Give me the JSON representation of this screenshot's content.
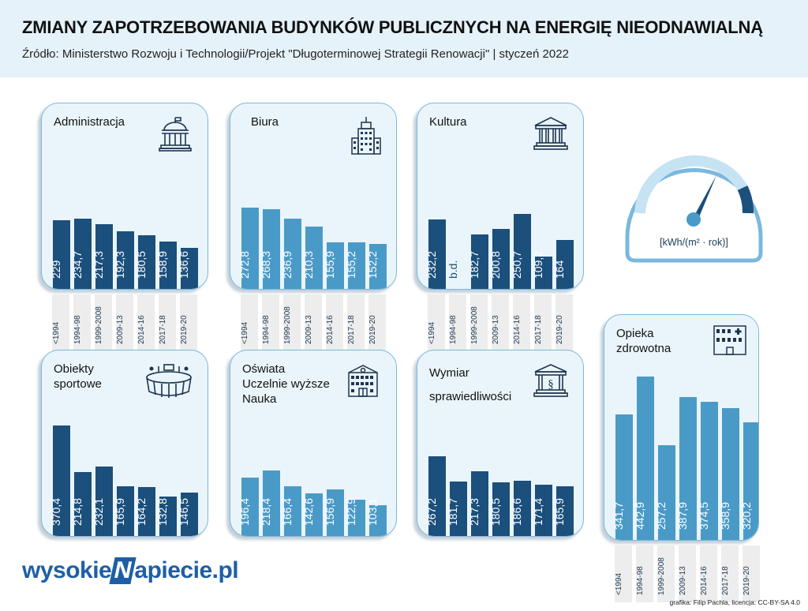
{
  "header": {
    "title": "ZMIANY ZAPOTRZEBOWANIA BUDYNKÓW PUBLICZNYCH NA ENERGIĘ NIEODNAWIALNĄ",
    "subtitle": "Źródło: Ministerstwo Rozwoju i Technologii/Projekt \"Długoterminowej Strategii Renowacji\" | styczeń 2022"
  },
  "categories": [
    "<1994",
    "1994-98",
    "1999-2008",
    "2009-13",
    "2014-16",
    "2017-18",
    "2019-20"
  ],
  "gauge": {
    "unit": "[kWh/(m² · rok)]"
  },
  "colors": {
    "dark": "#1b4f7c",
    "light": "#4a9ac8",
    "panel_bg": "#eaf5fb",
    "header_bg": "#e6f2fa"
  },
  "chart_data": [
    {
      "type": "bar",
      "title_lines": [
        "Administracja"
      ],
      "icon": "government-building-icon",
      "categories": [
        "<1994",
        "1994-98",
        "1999-2008",
        "2009-13",
        "2014-16",
        "2017-18",
        "2019-20"
      ],
      "values": [
        229,
        234.7,
        217.3,
        192.3,
        180.5,
        158.9,
        136.6
      ],
      "labels": [
        "229",
        "234,7",
        "217,3",
        "192,3",
        "180,5",
        "158,9",
        "136,6"
      ],
      "ylim": [
        0,
        450
      ]
    },
    {
      "type": "bar",
      "title_lines": [
        "Biura"
      ],
      "icon": "office-tower-icon",
      "categories": [
        "<1994",
        "1994-98",
        "1999-2008",
        "2009-13",
        "2014-16",
        "2017-18",
        "2019-20"
      ],
      "values": [
        272.8,
        268.3,
        236.9,
        210.3,
        155.9,
        155.2,
        152.2
      ],
      "labels": [
        "272,8",
        "268,3",
        "236,9",
        "210,3",
        "155,9",
        "155,2",
        "152,2"
      ],
      "ylim": [
        0,
        450
      ]
    },
    {
      "type": "bar",
      "title_lines": [
        "Kultura"
      ],
      "icon": "museum-icon",
      "categories": [
        "<1994",
        "1994-98",
        "1999-2008",
        "2009-13",
        "2014-16",
        "2017-18",
        "2019-20"
      ],
      "values": [
        232.2,
        null,
        182.7,
        200.8,
        250.7,
        109.2,
        164
      ],
      "labels": [
        "232,2",
        "b.d.",
        "182,7",
        "200,8",
        "250,7",
        "109,2",
        "164"
      ],
      "ylim": [
        0,
        450
      ]
    },
    {
      "type": "bar",
      "title_lines": [
        "Obiekty",
        "sportowe"
      ],
      "icon": "stadium-icon",
      "categories": [
        "<1994",
        "1994-98",
        "1999-2008",
        "2009-13",
        "2014-16",
        "2017-18",
        "2019-20"
      ],
      "values": [
        370.4,
        214.8,
        232.1,
        165.9,
        164.2,
        132.8,
        146.5
      ],
      "labels": [
        "370,4",
        "214,8",
        "232,1",
        "165,9",
        "164,2",
        "132,8",
        "146,5"
      ],
      "ylim": [
        0,
        450
      ]
    },
    {
      "type": "bar",
      "title_lines": [
        "Oświata",
        "Uczelnie wyższe",
        "Nauka"
      ],
      "icon": "school-icon",
      "categories": [
        "<1994",
        "1994-98",
        "1999-2008",
        "2009-13",
        "2014-16",
        "2017-18",
        "2019-20"
      ],
      "values": [
        196.4,
        218.4,
        166.4,
        142.6,
        156.9,
        122.9,
        103.1
      ],
      "labels": [
        "196,4",
        "218,4",
        "166,4",
        "142,6",
        "156,9",
        "122,9",
        "103,1"
      ],
      "ylim": [
        0,
        450
      ]
    },
    {
      "type": "bar",
      "title_lines": [
        "Wymiar",
        "sprawiedliwości"
      ],
      "icon": "court-icon",
      "categories": [
        "<1994",
        "1994-98",
        "1999-2008",
        "2009-13",
        "2014-16",
        "2017-18",
        "2019-20"
      ],
      "values": [
        267.2,
        181.7,
        217.3,
        180.5,
        186.6,
        171.4,
        165.9
      ],
      "labels": [
        "267,2",
        "181,7",
        "217,3",
        "180,5",
        "186,6",
        "171,4",
        "165,9"
      ],
      "ylim": [
        0,
        450
      ]
    },
    {
      "type": "bar",
      "title_lines": [
        "Opieka",
        "zdrowotna"
      ],
      "icon": "hospital-icon",
      "categories": [
        "<1994",
        "1994-98",
        "1999-2008",
        "2009-13",
        "2014-16",
        "2017-18",
        "2019-20"
      ],
      "values": [
        341.7,
        442.9,
        257.2,
        387.9,
        374.5,
        358.9,
        320.2
      ],
      "labels": [
        "341,7",
        "442,9",
        "257,2",
        "387,9",
        "374,5",
        "358,9",
        "320,2"
      ],
      "ylim": [
        0,
        450
      ]
    }
  ],
  "footer": {
    "logo_left": "wysokie",
    "logo_n": "N",
    "logo_right": "apiecie.pl",
    "credit": "grafika: Filip Pachla, licencja: CC-BY-SA 4.0"
  }
}
